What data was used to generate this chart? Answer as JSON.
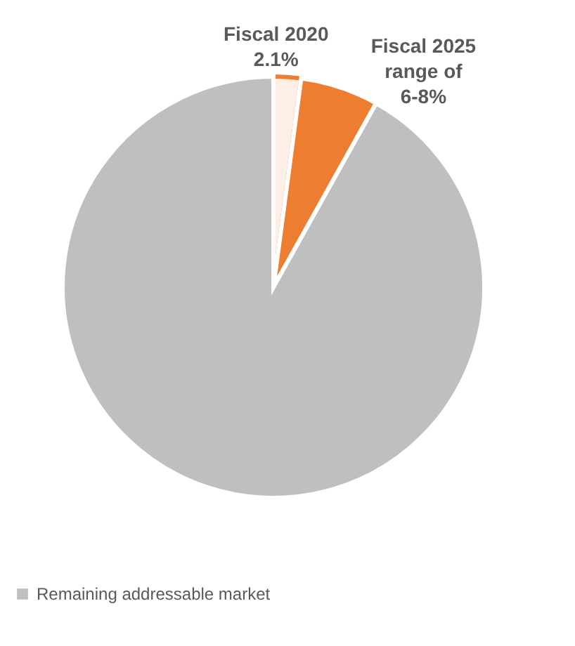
{
  "chart_data": {
    "type": "pie",
    "categories": [
      "Fiscal 2020",
      "Fiscal 2025 range of 6-8%",
      "Remaining addressable market"
    ],
    "values": [
      2.1,
      6,
      91.9
    ],
    "colors": [
      "#ed7d31",
      "#ed7d31",
      "#bfbfbf"
    ],
    "value_labels": [
      "2.1%",
      null,
      null
    ],
    "legend": "bottom"
  }
}
